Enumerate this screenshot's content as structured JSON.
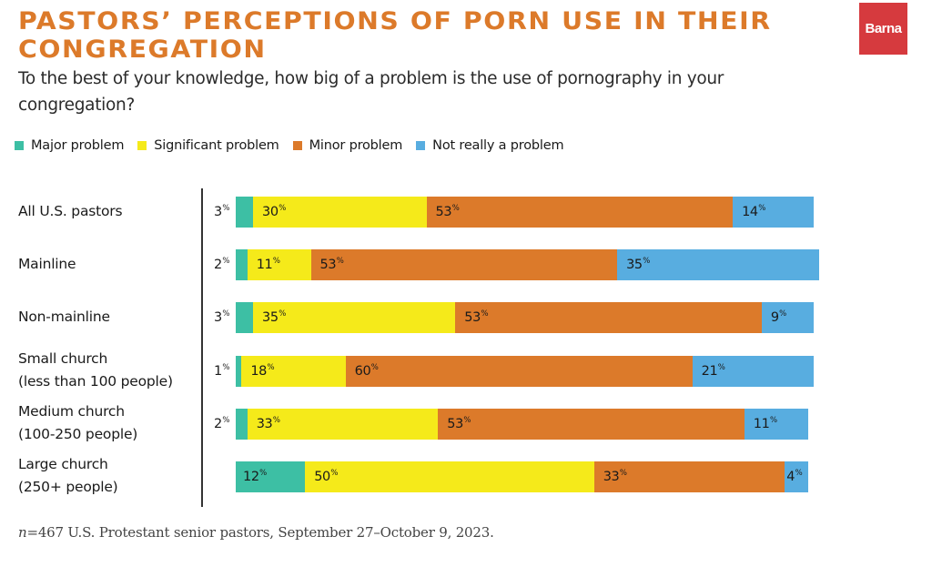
{
  "header": {
    "title": "PASTORS’ PERCEPTIONS OF PORN USE IN THEIR CONGREGATION",
    "subtitle": "To the best of your knowledge, how big of a problem is the use of pornography in your congregation?",
    "logo_text": "Barna",
    "logo_color": "#d63a3e"
  },
  "footer": {
    "note_n": "n",
    "note_text": "=467 U.S. Protestant senior pastors, September 27–October 9, 2023."
  },
  "chart_data": {
    "type": "bar",
    "orientation": "horizontal",
    "stacked": true,
    "normalized_percent": true,
    "title": "PASTORS’ PERCEPTIONS OF PORN USE IN THEIR CONGREGATION",
    "subtitle": "To the best of your knowledge, how big of a problem is the use of pornography in your congregation?",
    "legend_position": "top-left",
    "value_suffix": "%",
    "grid": false,
    "categories": [
      "All U.S. pastors",
      "Mainline",
      "Non-mainline",
      "Small church\n(less than 100 people)",
      "Medium church\n(100-250 people)",
      "Large church\n(250+ people)"
    ],
    "series": [
      {
        "name": "Major problem",
        "color": "#3dbfa4",
        "values": [
          3,
          2,
          3,
          1,
          2,
          12
        ]
      },
      {
        "name": "Significant problem",
        "color": "#f5ea1a",
        "values": [
          30,
          11,
          35,
          18,
          33,
          50
        ]
      },
      {
        "name": "Minor problem",
        "color": "#dc7a2a",
        "values": [
          53,
          53,
          53,
          60,
          53,
          33
        ]
      },
      {
        "name": "Not really a problem",
        "color": "#58ade0",
        "values": [
          14,
          35,
          9,
          21,
          11,
          4
        ]
      }
    ],
    "xlim": [
      0,
      100
    ]
  }
}
